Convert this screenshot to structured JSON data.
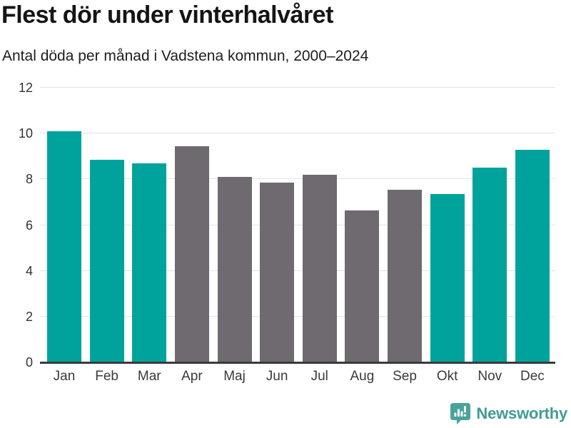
{
  "chart_data": {
    "type": "bar",
    "title": "Flest dör under vinterhalvåret",
    "subtitle": "Antal döda per månad i Vadstena kommun, 2000–2024",
    "categories": [
      "Jan",
      "Feb",
      "Mar",
      "Apr",
      "Maj",
      "Jun",
      "Jul",
      "Aug",
      "Sep",
      "Okt",
      "Nov",
      "Dec"
    ],
    "values": [
      10.1,
      8.85,
      8.7,
      9.45,
      8.1,
      7.85,
      8.2,
      6.65,
      7.55,
      7.35,
      8.5,
      9.3
    ],
    "xlabel": "",
    "ylabel": "",
    "ylim": [
      0,
      12
    ],
    "yticks": [
      0,
      2,
      4,
      6,
      8,
      10,
      12
    ],
    "grid": true,
    "legend_position": "none",
    "highlight_color": "#00a39b",
    "muted_color": "#6e6a6f",
    "highlighted_categories": [
      "Jan",
      "Feb",
      "Mar",
      "Okt",
      "Nov",
      "Dec"
    ]
  },
  "footer": {
    "brand_label": "Newsworthy",
    "brand_text_color": "#3f9c94",
    "logo_color": "#4aa39b",
    "logo_icon": "bar-chart-speech-bubble"
  }
}
